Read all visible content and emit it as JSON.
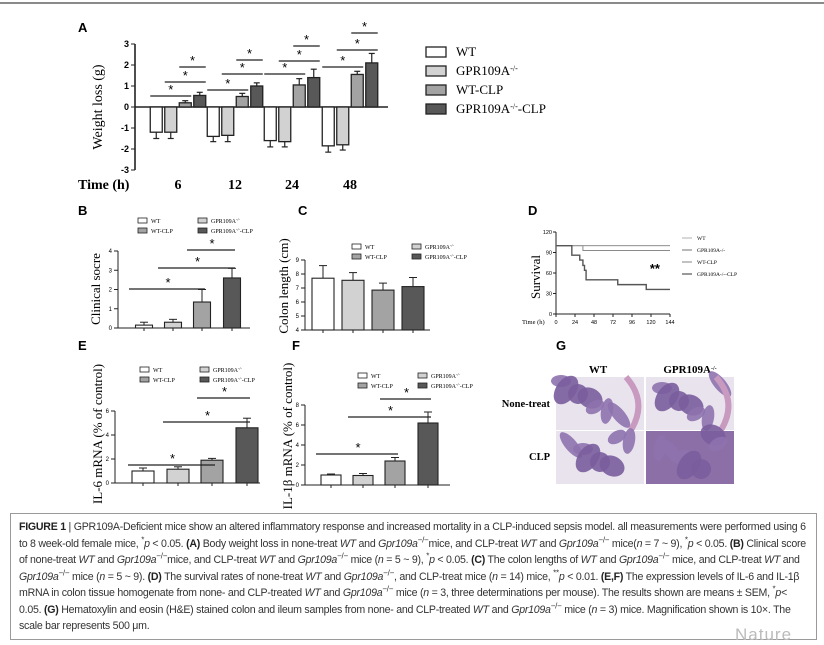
{
  "colors": {
    "WT": "#ffffff",
    "GPR109A-/-": "#d2d2d2",
    "WT-CLP": "#a3a3a3",
    "GPR109A-/--CLP": "#585858"
  },
  "legend4": [
    {
      "name": "WT",
      "sup": "",
      "suffix": ""
    },
    {
      "name": "GPR109A",
      "sup": "-/-",
      "suffix": ""
    },
    {
      "name": "WT-CLP",
      "sup": "",
      "suffix": ""
    },
    {
      "name": "GPR109A",
      "sup": "-/-",
      "suffix": "-CLP"
    }
  ],
  "chart_data": [
    {
      "panel": "A",
      "type": "bar",
      "ylabel": "Weight loss (g)",
      "xlabel": "Time (h)",
      "categories": [
        "6",
        "12",
        "24",
        "48"
      ],
      "ylim": [
        -3,
        3
      ],
      "yticks": [
        "3",
        "2",
        "1",
        "0",
        "-1",
        "-2",
        "-3"
      ],
      "series": [
        {
          "name": "WT",
          "values": [
            -1.2,
            -1.4,
            -1.6,
            -1.85
          ],
          "errors": [
            0.3,
            0.25,
            0.3,
            0.3
          ]
        },
        {
          "name": "GPR109A-/-",
          "values": [
            -1.2,
            -1.35,
            -1.65,
            -1.8
          ],
          "errors": [
            0.3,
            0.3,
            0.25,
            0.25
          ]
        },
        {
          "name": "WT-CLP",
          "values": [
            0.2,
            0.5,
            1.05,
            1.55
          ],
          "errors": [
            0.1,
            0.15,
            0.3,
            0.15
          ]
        },
        {
          "name": "GPR109A-/--CLP",
          "values": [
            0.55,
            1.0,
            1.4,
            2.1
          ],
          "errors": [
            0.15,
            0.15,
            0.4,
            0.45
          ]
        }
      ],
      "significance": [
        {
          "from": 0,
          "to": 2,
          "label": "*"
        },
        {
          "from": 1,
          "to": 3,
          "label": "*"
        },
        {
          "from": 2,
          "to": 3,
          "label": "*"
        }
      ]
    },
    {
      "panel": "B",
      "type": "bar",
      "ylabel": "Clinical socre",
      "categories": [
        "WT",
        "GPR109A-/-",
        "WT-CLP",
        "GPR109A-/--CLP"
      ],
      "ylim": [
        0,
        4
      ],
      "yticks": [
        "4",
        "3",
        "2",
        "1",
        "0"
      ],
      "values": [
        0.15,
        0.3,
        1.35,
        2.6
      ],
      "errors": [
        0.15,
        0.15,
        0.65,
        0.5
      ],
      "significance": [
        {
          "from": 0,
          "to": 2,
          "label": "*"
        },
        {
          "from": 1,
          "to": 3,
          "label": "*"
        },
        {
          "from": 2,
          "to": 3,
          "label": "*"
        }
      ]
    },
    {
      "panel": "C",
      "type": "bar",
      "ylabel": "Colon length (cm)",
      "categories": [
        "WT",
        "GPR109A-/-",
        "WT-CLP",
        "GPR109A-/--CLP"
      ],
      "ylim": [
        4,
        9
      ],
      "yticks": [
        "9",
        "8",
        "7",
        "6",
        "5",
        "4"
      ],
      "values": [
        7.7,
        7.55,
        6.85,
        7.1
      ],
      "errors": [
        0.9,
        0.55,
        0.5,
        0.65
      ],
      "significance": []
    },
    {
      "panel": "D",
      "type": "line",
      "ylabel": "Survival",
      "xlabel": "Time (h)",
      "xlim": [
        0,
        144
      ],
      "ylim": [
        0,
        120
      ],
      "xticks": [
        "0",
        "24",
        "48",
        "72",
        "96",
        "120",
        "144"
      ],
      "yticks": [
        "120",
        "90",
        "60",
        "30",
        "0"
      ],
      "annotation": "**",
      "series": [
        {
          "name": "WT",
          "points": [
            [
              0,
              100
            ],
            [
              144,
              100
            ]
          ]
        },
        {
          "name": "GPR109A-/-",
          "points": [
            [
              0,
              100
            ],
            [
              34,
              100
            ],
            [
              34,
              93
            ],
            [
              144,
              93
            ]
          ]
        },
        {
          "name": "WT-CLP",
          "points": [
            [
              0,
              100
            ],
            [
              144,
              100
            ]
          ]
        },
        {
          "name": "GPR109A-/--CLP",
          "points": [
            [
              0,
              100
            ],
            [
              20,
              100
            ],
            [
              20,
              86
            ],
            [
              30,
              86
            ],
            [
              30,
              79
            ],
            [
              34,
              79
            ],
            [
              34,
              71
            ],
            [
              36,
              71
            ],
            [
              36,
              64
            ],
            [
              38,
              64
            ],
            [
              38,
              50
            ],
            [
              78,
              50
            ],
            [
              78,
              43
            ],
            [
              114,
              43
            ],
            [
              114,
              36
            ],
            [
              144,
              36
            ]
          ]
        }
      ]
    },
    {
      "panel": "E",
      "type": "bar",
      "ylabel": "IL-6 mRNA (% of control)",
      "categories": [
        "WT",
        "GPR109A-/-",
        "WT-CLP",
        "GPR109A-/--CLP"
      ],
      "ylim": [
        0,
        6
      ],
      "yticks": [
        "6",
        "4",
        "2",
        "0"
      ],
      "values": [
        1.0,
        1.15,
        1.9,
        4.6
      ],
      "errors": [
        0.25,
        0.2,
        0.15,
        0.8
      ],
      "significance": [
        {
          "from": 0,
          "to": 2,
          "label": "*"
        },
        {
          "from": 1,
          "to": 3,
          "label": "*"
        },
        {
          "from": 2,
          "to": 3,
          "label": "*"
        }
      ]
    },
    {
      "panel": "F",
      "type": "bar",
      "ylabel": "IL-1β mRNA (% of control)",
      "categories": [
        "WT",
        "GPR109A-/-",
        "WT-CLP",
        "GPR109A-/--CLP"
      ],
      "ylim": [
        0,
        8
      ],
      "yticks": [
        "8",
        "6",
        "4",
        "2",
        "0"
      ],
      "values": [
        1.0,
        0.95,
        2.4,
        6.2
      ],
      "errors": [
        0.1,
        0.2,
        0.35,
        1.1
      ],
      "significance": [
        {
          "from": 0,
          "to": 2,
          "label": "*"
        },
        {
          "from": 1,
          "to": 3,
          "label": "*"
        },
        {
          "from": 2,
          "to": 3,
          "label": "*"
        }
      ]
    }
  ],
  "panelG": {
    "label": "G",
    "cols": [
      "WT",
      "GPR109A"
    ],
    "col_sup": "-/-",
    "rows": [
      "None-treat",
      "CLP"
    ]
  },
  "caption": [
    {
      "s": "b",
      "t": "FIGURE 1"
    },
    {
      "s": "",
      "t": " | GPR109A-Deficient mice show an altered inflammatory response and increased mortality in a CLP-induced sepsis model. all measurements were performed using 6 to 8 week-old female mice, "
    },
    {
      "s": "sup",
      "t": "*"
    },
    {
      "s": "i",
      "t": "p"
    },
    {
      "s": "",
      "t": " < 0.05. "
    },
    {
      "s": "b",
      "t": "(A)"
    },
    {
      "s": "",
      "t": " Body weight loss in none-treat "
    },
    {
      "s": "i",
      "t": "WT"
    },
    {
      "s": "",
      "t": " and "
    },
    {
      "s": "i",
      "t": "Gpr109a"
    },
    {
      "s": "sup",
      "t": "−/−"
    },
    {
      "s": "",
      "t": "mice, and CLP-treat "
    },
    {
      "s": "i",
      "t": "WT"
    },
    {
      "s": "",
      "t": " and "
    },
    {
      "s": "i",
      "t": "Gpr109a"
    },
    {
      "s": "sup",
      "t": "−/−"
    },
    {
      "s": "",
      "t": " mice("
    },
    {
      "s": "i",
      "t": "n"
    },
    {
      "s": "",
      "t": " = 7 ~ 9), "
    },
    {
      "s": "sup",
      "t": "*"
    },
    {
      "s": "i",
      "t": "p"
    },
    {
      "s": "",
      "t": " < 0.05. "
    },
    {
      "s": "b",
      "t": "(B)"
    },
    {
      "s": "",
      "t": " Clinical score of none-treat "
    },
    {
      "s": "i",
      "t": "WT"
    },
    {
      "s": "",
      "t": " and "
    },
    {
      "s": "i",
      "t": "Gpr109a"
    },
    {
      "s": "sup",
      "t": "−/−"
    },
    {
      "s": "",
      "t": "mice, and CLP-treat "
    },
    {
      "s": "i",
      "t": "WT"
    },
    {
      "s": "",
      "t": " and "
    },
    {
      "s": "i",
      "t": "Gpr109a"
    },
    {
      "s": "sup",
      "t": "−/−"
    },
    {
      "s": "",
      "t": " mice ("
    },
    {
      "s": "i",
      "t": "n"
    },
    {
      "s": "",
      "t": " = 5 ~ 9), "
    },
    {
      "s": "sup",
      "t": "*"
    },
    {
      "s": "i",
      "t": "p"
    },
    {
      "s": "",
      "t": " < 0.05. "
    },
    {
      "s": "b",
      "t": "(C)"
    },
    {
      "s": "",
      "t": " The colon lengths of "
    },
    {
      "s": "i",
      "t": "WT"
    },
    {
      "s": "",
      "t": " and "
    },
    {
      "s": "i",
      "t": "Gpr109a"
    },
    {
      "s": "sup",
      "t": "−/−"
    },
    {
      "s": "",
      "t": " mice, and CLP-treat "
    },
    {
      "s": "i",
      "t": "WT"
    },
    {
      "s": "",
      "t": " and "
    },
    {
      "s": "i",
      "t": "Gpr109a"
    },
    {
      "s": "sup",
      "t": "−/−"
    },
    {
      "s": "",
      "t": " mice ("
    },
    {
      "s": "i",
      "t": "n"
    },
    {
      "s": "",
      "t": " = 5 ~ 9). "
    },
    {
      "s": "b",
      "t": "(D)"
    },
    {
      "s": "",
      "t": " The survival rates of none-treat "
    },
    {
      "s": "i",
      "t": "WT"
    },
    {
      "s": "",
      "t": " and "
    },
    {
      "s": "i",
      "t": "Gpr109a"
    },
    {
      "s": "sup",
      "t": "−/−"
    },
    {
      "s": "",
      "t": ", and CLP-treat mice ("
    },
    {
      "s": "i",
      "t": "n"
    },
    {
      "s": "",
      "t": " = 14) mice, "
    },
    {
      "s": "sup",
      "t": "**"
    },
    {
      "s": "i",
      "t": "p"
    },
    {
      "s": "",
      "t": " < 0.01. "
    },
    {
      "s": "b",
      "t": "(E,F)"
    },
    {
      "s": "",
      "t": " The expression levels of IL-6 and IL-1β mRNA in colon tissue homogenate from none- and CLP-treated "
    },
    {
      "s": "i",
      "t": "WT"
    },
    {
      "s": "",
      "t": " and "
    },
    {
      "s": "i",
      "t": "Gpr109a"
    },
    {
      "s": "sup",
      "t": "−/−"
    },
    {
      "s": "",
      "t": " mice ("
    },
    {
      "s": "i",
      "t": "n"
    },
    {
      "s": "",
      "t": " = 3, three determinations per mouse). The results shown are means ± SEM, "
    },
    {
      "s": "sup",
      "t": "*"
    },
    {
      "s": "i",
      "t": "p"
    },
    {
      "s": "",
      "t": "< 0.05. "
    },
    {
      "s": "b",
      "t": "(G)"
    },
    {
      "s": "",
      "t": " Hematoxylin and eosin (H&E) stained colon and ileum samples from none- and CLP-treated "
    },
    {
      "s": "i",
      "t": "WT"
    },
    {
      "s": "",
      "t": " and "
    },
    {
      "s": "i",
      "t": "Gpr109a"
    },
    {
      "s": "sup",
      "t": "−/−"
    },
    {
      "s": "",
      "t": " mice ("
    },
    {
      "s": "i",
      "t": "n"
    },
    {
      "s": "",
      "t": " = 3) mice. Magnification shown is 10×. The scale bar represents 500 μm."
    }
  ],
  "watermark": "Nature"
}
